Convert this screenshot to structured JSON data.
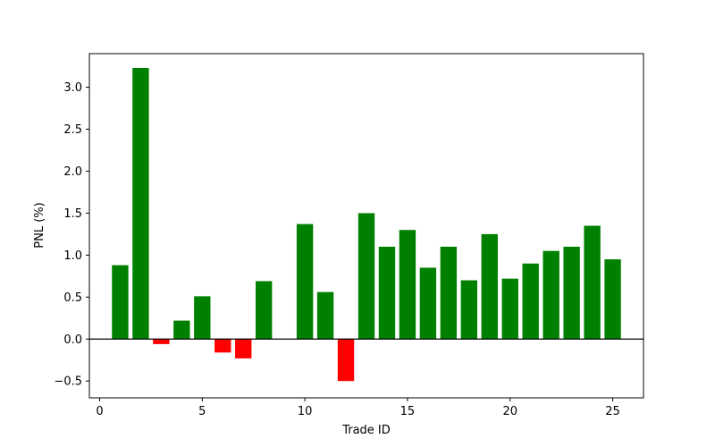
{
  "chart_data": {
    "type": "bar",
    "title": "",
    "xlabel": "Trade ID",
    "ylabel": "PNL (%)",
    "xlim": [
      -0.5,
      26.5
    ],
    "ylim": [
      -0.7,
      3.4
    ],
    "xticks": [
      0,
      5,
      10,
      15,
      20,
      25
    ],
    "yticks": [
      -0.5,
      0.0,
      0.5,
      1.0,
      1.5,
      2.0,
      2.5,
      3.0
    ],
    "ytick_labels": [
      "−0.5",
      "0.0",
      "0.5",
      "1.0",
      "1.5",
      "2.0",
      "2.5",
      "3.0"
    ],
    "grid": false,
    "zero_line": true,
    "positive_color": "#008000",
    "negative_color": "#ff0000",
    "x": [
      1,
      2,
      3,
      4,
      5,
      6,
      7,
      8,
      9,
      10,
      11,
      12,
      13,
      14,
      15,
      16,
      17,
      18,
      19,
      20,
      21,
      22,
      23,
      24,
      25
    ],
    "values": [
      0.88,
      3.23,
      -0.06,
      0.22,
      0.51,
      -0.16,
      -0.23,
      0.69,
      0.0,
      1.37,
      0.56,
      -0.5,
      1.5,
      1.1,
      1.3,
      0.85,
      1.1,
      0.7,
      1.25,
      0.72,
      0.9,
      1.05,
      1.1,
      1.35,
      0.95
    ]
  }
}
